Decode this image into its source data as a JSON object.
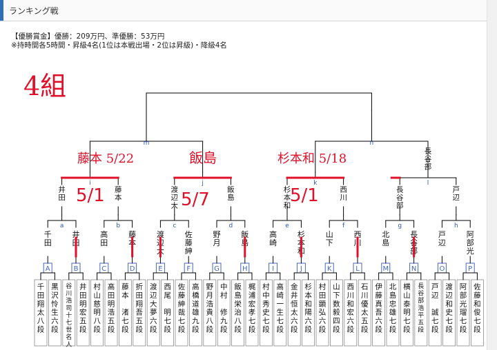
{
  "header": {
    "title": "ランキング戦"
  },
  "info": {
    "line1": "【優勝賞金】優勝：209万円、準優勝：53万円",
    "line2": "※持時間各5時間・昇級4名(1位は本戦出場・2位は昇級)・降級4名"
  },
  "handwritten": {
    "group": "4組",
    "m_annot": "藤本 5/22",
    "m_annot2": "飯島",
    "n_annot": "杉本和 5/18",
    "score": "5/1",
    "score_mid": "5/7"
  },
  "players": [
    "千田翔太八段",
    "黒沢怜生六段",
    "谷川浩司十七世名人",
    "井田明宏五段",
    "村山慈明八段",
    "高田明浩五段",
    "藤本　渚七段",
    "折田翔吾五段",
    "渡辺大夢六段",
    "西尾　明七段",
    "佐藤紳哉七段",
    "高橋道雄九段",
    "野月浩貴八段",
    "中村　修九段",
    "飯島栄治八段",
    "梶浦宏孝七段",
    "村中秀史七段",
    "高崎一生七段",
    "金井恒太六段",
    "杉本和陽六段",
    "村田顕弘六段",
    "山下数毅四段",
    "西川和宏六段",
    "石川優太五段",
    "伊藤真吾六段",
    "北島忠雄七段",
    "横山泰明七段",
    "長谷部浩平五段",
    "戸辺　誠七段",
    "渡辺和史七段",
    "阿部光瑠七段",
    "佐藤和俊七段"
  ],
  "blocks": [
    "A",
    "B",
    "C",
    "D",
    "E",
    "F",
    "G",
    "H",
    "I",
    "J",
    "K",
    "L",
    "M",
    "N",
    "O",
    "P"
  ],
  "r1": [
    "千田",
    "井田",
    "高田",
    "藤本",
    "渡辺大",
    "佐藤紳",
    "野月",
    "飯島",
    "高崎",
    "杉本和",
    "山下",
    "西川",
    "北島",
    "長谷部",
    "戸辺",
    "阿部光"
  ],
  "r1_letters": [
    "a",
    "b",
    "c",
    "d",
    "e",
    "f",
    "g",
    "h"
  ],
  "r2": [
    "井田",
    "藤本",
    "渡辺大",
    "飯島",
    "杉本和",
    "西川",
    "長谷部",
    "戸辺"
  ],
  "r2_letters": [
    "i",
    "j",
    "k",
    "l"
  ],
  "r3_letters": [
    "m",
    "n"
  ],
  "r3_right": "長谷部",
  "colors": {
    "line": "#000000",
    "advance": "#e0102a",
    "box": "#4466bb",
    "letter": "#2a55c6"
  }
}
